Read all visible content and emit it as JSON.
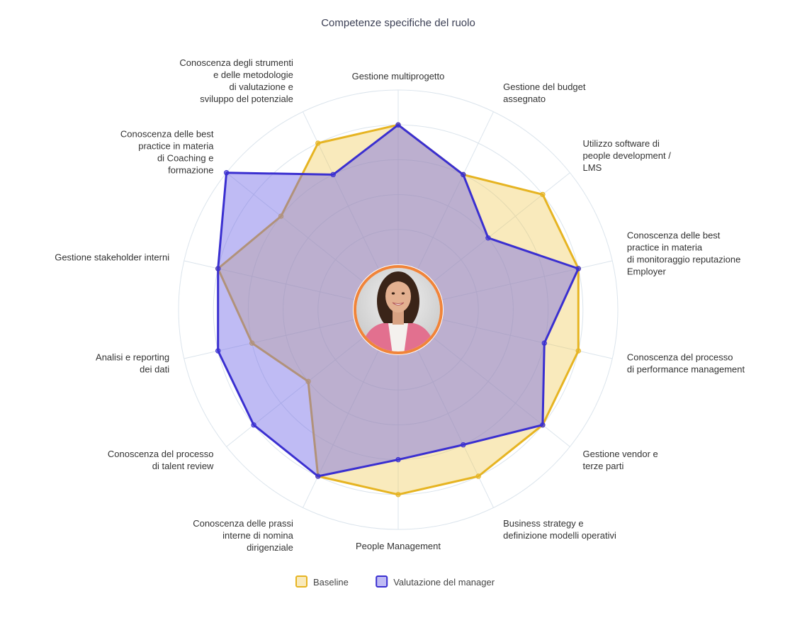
{
  "chart_data": {
    "type": "radar",
    "title": "Competenze specifiche del ruolo",
    "rmax": 5,
    "grid_levels": [
      1,
      2,
      3,
      4,
      5
    ],
    "grid": true,
    "legend_position": "bottom",
    "center_image": "profile-photo",
    "categories": [
      [
        "Gestione multiprogetto"
      ],
      [
        "Gestione del budget",
        "assegnato"
      ],
      [
        "Utilizzo software di",
        "people development /",
        "LMS"
      ],
      [
        "Conoscenza delle best",
        "practice in materia",
        "di monitoraggio reputazione",
        "Employer"
      ],
      [
        "Conoscenza del processo",
        "di performance management"
      ],
      [
        "Gestione vendor e",
        "terze parti"
      ],
      [
        "Business strategy e",
        "definizione modelli operativi"
      ],
      [
        "People Management"
      ],
      [
        "Conoscenza delle prassi",
        "interne di nomina",
        "dirigenziale"
      ],
      [
        "Conoscenza del processo",
        "di talent review"
      ],
      [
        "Analisi e reporting",
        "dei dati"
      ],
      [
        "Gestione stakeholder interni"
      ],
      [
        "Conoscenza delle best",
        "practice in materia",
        "di Coaching e",
        "formazione"
      ],
      [
        "Conoscenza degli strumenti",
        "e delle metodologie",
        "di valutazione e",
        "sviluppo del potenziale"
      ]
    ],
    "series": [
      {
        "name": "Baseline",
        "color": "#e6b422",
        "fill": "rgba(240,200,80,0.38)",
        "values": [
          4,
          3,
          4,
          4,
          4,
          4,
          4,
          4,
          4,
          2,
          3,
          4,
          3,
          4
        ]
      },
      {
        "name": "Valutazione del manager",
        "color": "#3a2fd0",
        "fill": "rgba(112,105,230,0.45)",
        "values": [
          4,
          3,
          2,
          4,
          3,
          4,
          3,
          3,
          4,
          4,
          4,
          4,
          5,
          3
        ]
      }
    ]
  }
}
